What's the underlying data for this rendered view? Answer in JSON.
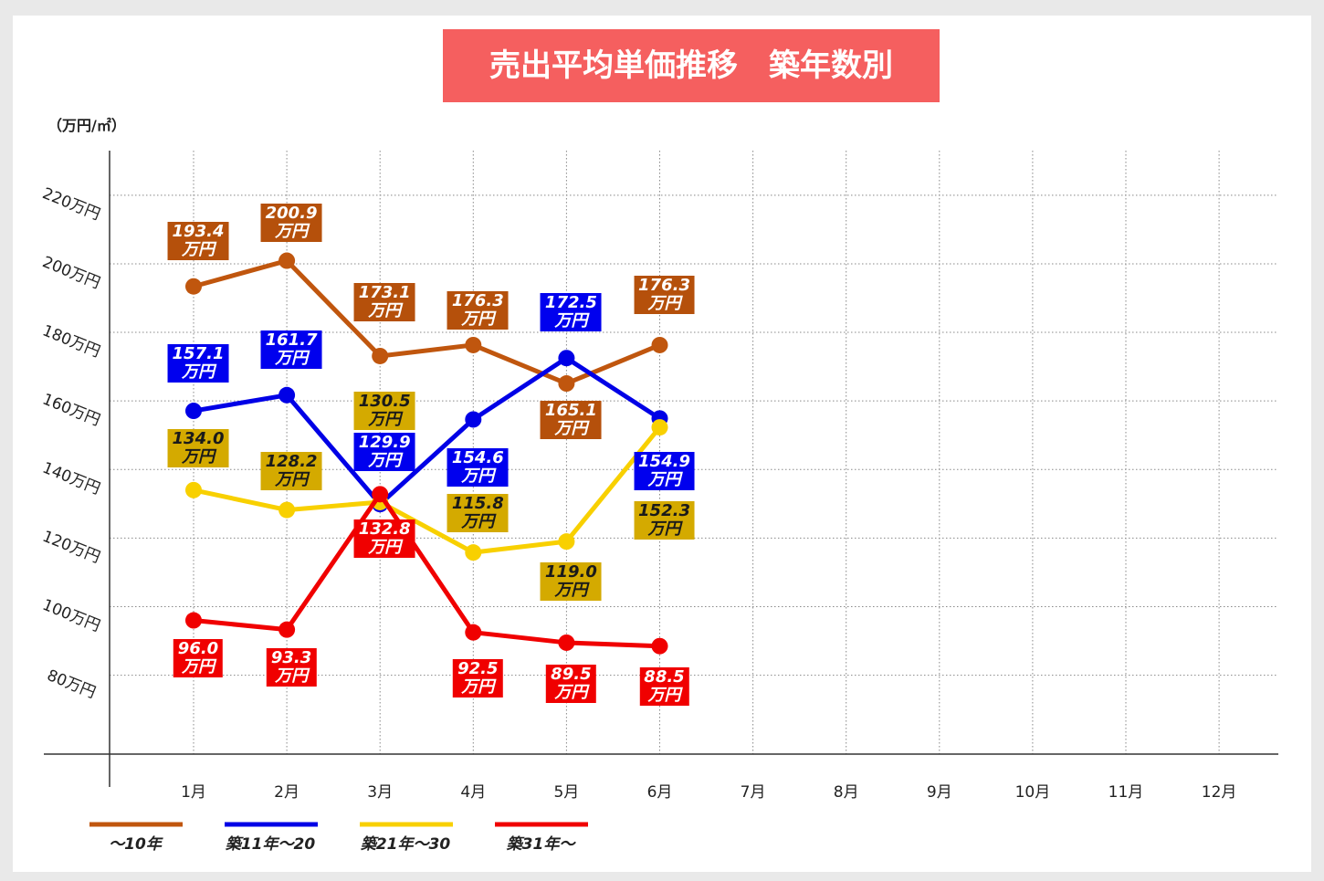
{
  "chart_data": {
    "type": "line",
    "title": "売出平均単価推移　築年数別",
    "y_axis_label": "（万円/㎡）",
    "categories": [
      "1月",
      "2月",
      "3月",
      "4月",
      "5月",
      "6月",
      "7月",
      "8月",
      "9月",
      "10月",
      "11月",
      "12月"
    ],
    "ylim": [
      57,
      233
    ],
    "yticks": [
      {
        "value": 80,
        "label": "80万円"
      },
      {
        "value": 100,
        "label": "100万円"
      },
      {
        "value": 120,
        "label": "120万円"
      },
      {
        "value": 140,
        "label": "140万円"
      },
      {
        "value": 160,
        "label": "160万円"
      },
      {
        "value": 180,
        "label": "180万円"
      },
      {
        "value": 200,
        "label": "200万円"
      },
      {
        "value": 220,
        "label": "220万円"
      }
    ],
    "grid": true,
    "legend": "bottom-left",
    "series": [
      {
        "name": "～10年",
        "color": "#c0560e",
        "label_color": "#b5500b",
        "label_text_color": "#ffffff",
        "values": [
          193.4,
          200.9,
          173.1,
          176.3,
          165.1,
          176.3,
          null,
          null,
          null,
          null,
          null,
          null
        ],
        "value_labels": [
          "193.4\n万円",
          "200.9\n万円",
          "173.1\n万円",
          "176.3\n万円",
          "165.1\n万円",
          "176.3\n万円",
          null,
          null,
          null,
          null,
          null,
          null
        ]
      },
      {
        "name": "築11年～20",
        "color": "#0000e6",
        "label_color": "#0000ee",
        "label_text_color": "#ffffff",
        "values": [
          157.1,
          161.7,
          129.9,
          154.6,
          172.5,
          154.9,
          null,
          null,
          null,
          null,
          null,
          null
        ],
        "value_labels": [
          "157.1\n万円",
          "161.7\n万円",
          "129.9\n万円",
          "154.6\n万円",
          "172.5\n万円",
          "154.9\n万円",
          null,
          null,
          null,
          null,
          null,
          null
        ]
      },
      {
        "name": "築21年～30",
        "color": "#f8d000",
        "label_color": "#d4aa00",
        "label_text_color": "#1a1a1a",
        "values": [
          134.0,
          128.2,
          130.5,
          115.8,
          119.0,
          152.3,
          null,
          null,
          null,
          null,
          null,
          null
        ],
        "value_labels": [
          "134.0\n万円",
          "128.2\n万円",
          "130.5\n万円",
          "115.8\n万円",
          "119.0\n万円",
          "152.3\n万円",
          null,
          null,
          null,
          null,
          null,
          null
        ]
      },
      {
        "name": "築31年～",
        "color": "#f00000",
        "label_color": "#f00000",
        "label_text_color": "#ffffff",
        "values": [
          96.0,
          93.3,
          132.8,
          92.5,
          89.5,
          88.5,
          null,
          null,
          null,
          null,
          null,
          null
        ],
        "value_labels": [
          "96.0\n万円",
          "93.3\n万円",
          "132.8\n万円",
          "92.5\n万円",
          "89.5\n万円",
          "88.5\n万円",
          null,
          null,
          null,
          null,
          null,
          null
        ]
      }
    ]
  }
}
